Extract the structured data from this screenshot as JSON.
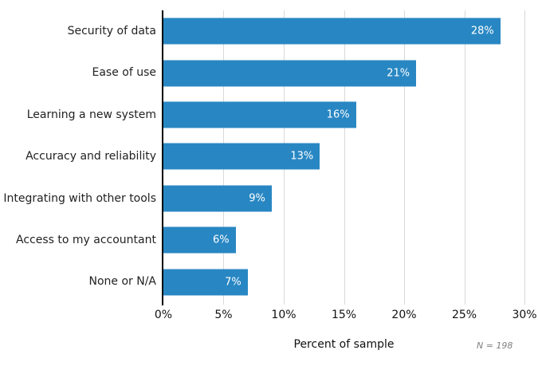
{
  "chart_data": {
    "type": "bar",
    "orientation": "horizontal",
    "categories": [
      "Security of data",
      "Ease of use",
      "Learning a new system",
      "Accuracy and reliability",
      "Integrating with other tools",
      "Access to my accountant",
      "None or N/A"
    ],
    "values": [
      28,
      21,
      16,
      13,
      9,
      6,
      7
    ],
    "value_labels": [
      "28%",
      "21%",
      "16%",
      "13%",
      "9%",
      "6%",
      "7%"
    ],
    "xlabel": "Percent of sample",
    "note": "N = 198",
    "x_ticks": [
      "0%",
      "5%",
      "10%",
      "15%",
      "20%",
      "25%",
      "30%"
    ],
    "x_tick_values": [
      0,
      5,
      10,
      15,
      20,
      25,
      30
    ],
    "xlim": [
      0,
      30
    ],
    "grid": true,
    "legend": false,
    "bar_color": "#2887c3",
    "bar_value_text_color": "#ffffff",
    "gridline_color": "#d9d9d9",
    "axis_line_color": "#000000",
    "label_color": "#222222",
    "tick_label_color": "#111111",
    "note_color": "#808080"
  }
}
